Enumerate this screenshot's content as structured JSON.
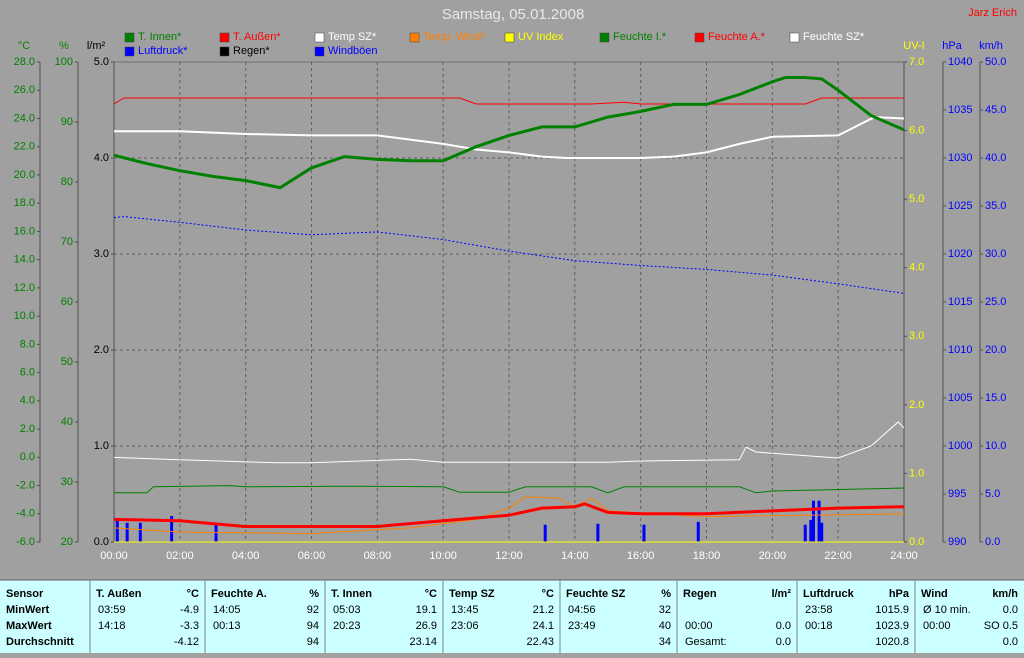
{
  "chart_data": {
    "type": "line",
    "title": "Samstag, 05.01.2008",
    "author": "Jarz Erich",
    "xlim": [
      0,
      24
    ],
    "xticks": [
      {
        "value": 0,
        "label": "00:00"
      },
      {
        "value": 2,
        "label": "02:00"
      },
      {
        "value": 4,
        "label": "04:00"
      },
      {
        "value": 6,
        "label": "06:00"
      },
      {
        "value": 8,
        "label": "08:00"
      },
      {
        "value": 10,
        "label": "10:00"
      },
      {
        "value": 12,
        "label": "12:00"
      },
      {
        "value": 14,
        "label": "14:00"
      },
      {
        "value": 16,
        "label": "16:00"
      },
      {
        "value": 18,
        "label": "18:00"
      },
      {
        "value": 20,
        "label": "20:00"
      },
      {
        "value": 22,
        "label": "22:00"
      },
      {
        "value": 24,
        "label": "24:00"
      }
    ],
    "grid": true,
    "grid_axis": 2,
    "axes": [
      {
        "label": "°C",
        "color": "#008000",
        "lim": [
          -6,
          28
        ],
        "ticks": [
          {
            "value": -6,
            "label": "-6.0"
          },
          {
            "value": -4,
            "label": "-4.0"
          },
          {
            "value": -2,
            "label": "-2.0"
          },
          {
            "value": 0,
            "label": "0.0"
          },
          {
            "value": 2,
            "label": "2.0"
          },
          {
            "value": 4,
            "label": "4.0"
          },
          {
            "value": 6,
            "label": "6.0"
          },
          {
            "value": 8,
            "label": "8.0"
          },
          {
            "value": 10,
            "label": "10.0"
          },
          {
            "value": 12,
            "label": "12.0"
          },
          {
            "value": 14,
            "label": "14.0"
          },
          {
            "value": 16,
            "label": "16.0"
          },
          {
            "value": 18,
            "label": "18.0"
          },
          {
            "value": 20,
            "label": "20.0"
          },
          {
            "value": 22,
            "label": "22.0"
          },
          {
            "value": 24,
            "label": "24.0"
          },
          {
            "value": 26,
            "label": "26.0"
          },
          {
            "value": 28,
            "label": "28.0"
          }
        ]
      },
      {
        "label": "%",
        "color": "#008000",
        "lim": [
          20,
          100
        ],
        "ticks": [
          20,
          30,
          40,
          50,
          60,
          70,
          80,
          90,
          100
        ]
      },
      {
        "label": "l/m²",
        "color": "#000000",
        "lim": [
          0,
          5
        ],
        "ticks": [
          {
            "value": 0,
            "label": "0.0"
          },
          {
            "value": 1,
            "label": "1.0"
          },
          {
            "value": 2,
            "label": "2.0"
          },
          {
            "value": 3,
            "label": "3.0"
          },
          {
            "value": 4,
            "label": "4.0"
          },
          {
            "value": 5,
            "label": "5.0"
          }
        ]
      },
      {
        "label": "UV-I",
        "color": "#ffff00",
        "lim": [
          0,
          7
        ],
        "ticks": [
          {
            "value": 0,
            "label": "0.0"
          },
          {
            "value": 1,
            "label": "1.0"
          },
          {
            "value": 2,
            "label": "2.0"
          },
          {
            "value": 3,
            "label": "3.0"
          },
          {
            "value": 4,
            "label": "4.0"
          },
          {
            "value": 5,
            "label": "5.0"
          },
          {
            "value": 6,
            "label": "6.0"
          },
          {
            "value": 7,
            "label": "7.0"
          }
        ]
      },
      {
        "label": "hPa",
        "color": "#0000ff",
        "lim": [
          990,
          1040
        ],
        "ticks": [
          990,
          995,
          1000,
          1005,
          1010,
          1015,
          1020,
          1025,
          1030,
          1035,
          1040
        ]
      },
      {
        "label": "km/h",
        "color": "#0000ff",
        "lim": [
          0,
          50
        ],
        "ticks": [
          {
            "value": 0,
            "label": "0.0"
          },
          {
            "value": 5,
            "label": "5.0"
          },
          {
            "value": 10,
            "label": "10.0"
          },
          {
            "value": 15,
            "label": "15.0"
          },
          {
            "value": 20,
            "label": "20.0"
          },
          {
            "value": 25,
            "label": "25.0"
          },
          {
            "value": 30,
            "label": "30.0"
          },
          {
            "value": 35,
            "label": "35.0"
          },
          {
            "value": 40,
            "label": "40.0"
          },
          {
            "value": 45,
            "label": "45.0"
          },
          {
            "value": 50,
            "label": "50.0"
          }
        ]
      }
    ],
    "series": [
      {
        "name": "T. Innen*",
        "color": "#008000",
        "axis": 0,
        "width": 3,
        "x": [
          0,
          1,
          2,
          3,
          4,
          5.05,
          6,
          7,
          8,
          9,
          10,
          11,
          12,
          13,
          14,
          15,
          16,
          17,
          18,
          19,
          20,
          20.4,
          21,
          21.5,
          22,
          23,
          24
        ],
        "values": [
          21.4,
          20.8,
          20.3,
          19.9,
          19.6,
          19.1,
          20.5,
          21.3,
          21.1,
          21.0,
          21.0,
          22.0,
          22.8,
          23.4,
          23.4,
          24.1,
          24.5,
          25.0,
          25.0,
          25.7,
          26.6,
          26.9,
          26.9,
          26.8,
          26.0,
          24.2,
          23.2
        ]
      },
      {
        "name": "T. Außen*",
        "color": "#ff0000",
        "axis": 0,
        "width": 3,
        "x": [
          0,
          2,
          3.98,
          6,
          8,
          10,
          12,
          13,
          14,
          14.3,
          15,
          16,
          18,
          20,
          22,
          24
        ],
        "values": [
          -4.4,
          -4.5,
          -4.9,
          -4.9,
          -4.9,
          -4.5,
          -4.1,
          -3.6,
          -3.5,
          -3.3,
          -3.9,
          -4.0,
          -4.0,
          -3.8,
          -3.6,
          -3.5
        ]
      },
      {
        "name": "Temp SZ*",
        "color": "#ffffff",
        "axis": 0,
        "width": 2,
        "x": [
          0,
          2,
          3,
          4,
          6,
          8,
          9,
          10,
          11,
          12,
          13,
          13.75,
          15,
          16,
          17,
          18,
          19,
          20,
          22,
          23.1,
          24
        ],
        "values": [
          23.1,
          23.1,
          23.0,
          22.9,
          22.8,
          22.8,
          22.5,
          22.2,
          21.8,
          21.6,
          21.3,
          21.2,
          21.2,
          21.2,
          21.3,
          21.6,
          22.2,
          22.7,
          22.8,
          24.1,
          24.0
        ]
      },
      {
        "name": "Temp. Wind*",
        "color": "#ff8000",
        "axis": 0,
        "width": 1,
        "x": [
          0,
          2,
          6,
          9,
          11,
          12,
          12.5,
          13.5,
          14,
          14.5,
          15,
          18,
          24
        ],
        "values": [
          -5.0,
          -5.3,
          -5.4,
          -5.0,
          -4.4,
          -3.6,
          -2.8,
          -2.9,
          -3.5,
          -2.9,
          -3.8,
          -4.2,
          -4.0
        ]
      },
      {
        "name": "UV Index",
        "color": "#ffff00",
        "axis": 3,
        "width": 1,
        "x": [
          0,
          24
        ],
        "values": [
          0,
          0
        ]
      },
      {
        "name": "Feuchte I.*",
        "color": "#008000",
        "axis": 1,
        "width": 1,
        "x": [
          0,
          1,
          1.2,
          3.5,
          4,
          7,
          10,
          10.5,
          12,
          12.5,
          14.5,
          15,
          15.5,
          19,
          19.5,
          20,
          24
        ],
        "values": [
          28.2,
          28.2,
          29.2,
          29.4,
          29.2,
          29.3,
          29.2,
          28.3,
          28.3,
          29.2,
          29.2,
          28.2,
          29.2,
          29.2,
          28.2,
          28.5,
          29.0
        ]
      },
      {
        "name": "Feuchte A.*",
        "color": "#ff0000",
        "axis": 1,
        "width": 1,
        "x": [
          0,
          0.3,
          10.5,
          11,
          14.5,
          15.5,
          16,
          21,
          21.5,
          24
        ],
        "values": [
          93.0,
          94,
          94,
          93,
          93,
          93.3,
          93,
          93,
          94,
          94
        ]
      },
      {
        "name": "Feuchte SZ*",
        "color": "#ffffff",
        "axis": 1,
        "width": 1,
        "x": [
          0,
          2,
          4.93,
          6,
          9,
          10,
          15,
          16,
          19,
          19.2,
          19.5,
          22,
          23,
          23.82,
          24
        ],
        "values": [
          34.1,
          33.7,
          33.2,
          33.2,
          33.8,
          33.3,
          33.3,
          33.5,
          33.7,
          35.8,
          35.0,
          34.0,
          36,
          40,
          39
        ]
      },
      {
        "name": "Luftdruck*",
        "color": "#0000ff",
        "axis": 4,
        "width": 1,
        "dashed": true,
        "x": [
          0,
          0.3,
          2,
          4,
          6,
          8,
          10,
          12,
          14,
          16,
          18,
          20,
          22,
          24
        ],
        "values": [
          1023.8,
          1023.9,
          1023.3,
          1022.5,
          1022.0,
          1022.3,
          1021.5,
          1020.3,
          1019.3,
          1018.8,
          1018.4,
          1017.8,
          1016.9,
          1015.9
        ]
      },
      {
        "name": "Regen*",
        "color": "#000000",
        "axis": 2,
        "width": 1,
        "x": [
          0,
          24
        ],
        "values": [
          0,
          0
        ]
      },
      {
        "name": "Windböen",
        "color": "#0000ff",
        "axis": 5,
        "type": "bar",
        "x": [
          0.1,
          0.4,
          0.8,
          1.75,
          3.1,
          13.1,
          14.7,
          16.1,
          17.75,
          21,
          21.17,
          21.25,
          21.42,
          21.5
        ],
        "values": [
          2.3,
          2.0,
          2.0,
          2.7,
          1.8,
          1.8,
          1.9,
          1.8,
          2.1,
          1.8,
          2.3,
          4.3,
          4.3,
          2.0
        ]
      }
    ]
  },
  "table": {
    "header": "Sensor",
    "row_labels": [
      "MinWert",
      "MaxWert",
      "Durchschnitt"
    ],
    "columns": [
      {
        "name": "T. Außen",
        "unit": "°C",
        "rows": [
          [
            "03:59",
            "-4.9"
          ],
          [
            "14:18",
            "-3.3"
          ],
          [
            null,
            "-4.12"
          ]
        ]
      },
      {
        "name": "Feuchte A.",
        "unit": "%",
        "rows": [
          [
            "14:05",
            "92"
          ],
          [
            "00:13",
            "94"
          ],
          [
            null,
            "94"
          ]
        ]
      },
      {
        "name": "T. Innen",
        "unit": "°C",
        "rows": [
          [
            "05:03",
            "19.1"
          ],
          [
            "20:23",
            "26.9"
          ],
          [
            null,
            "23.14"
          ]
        ]
      },
      {
        "name": "Temp SZ",
        "unit": "°C",
        "rows": [
          [
            "13:45",
            "21.2"
          ],
          [
            "23:06",
            "24.1"
          ],
          [
            null,
            "22.43"
          ]
        ]
      },
      {
        "name": "Feuchte SZ",
        "unit": "%",
        "rows": [
          [
            "04:56",
            "32"
          ],
          [
            "23:49",
            "40"
          ],
          [
            null,
            "34"
          ]
        ]
      },
      {
        "name": "Regen",
        "unit": "l/m²",
        "rows": [
          [
            null,
            null
          ],
          [
            "00:00",
            "0.0"
          ],
          [
            "Gesamt:",
            "0.0"
          ]
        ]
      },
      {
        "name": "Luftdruck",
        "unit": "hPa",
        "rows": [
          [
            "23:58",
            "1015.9"
          ],
          [
            "00:18",
            "1023.9"
          ],
          [
            null,
            "1020.8"
          ]
        ]
      },
      {
        "name": "Wind",
        "unit": "km/h",
        "rows": [
          [
            "Ø 10 min.",
            "0.0"
          ],
          [
            "00:00",
            "SO 0.5"
          ],
          [
            null,
            "0.0"
          ]
        ]
      }
    ]
  }
}
